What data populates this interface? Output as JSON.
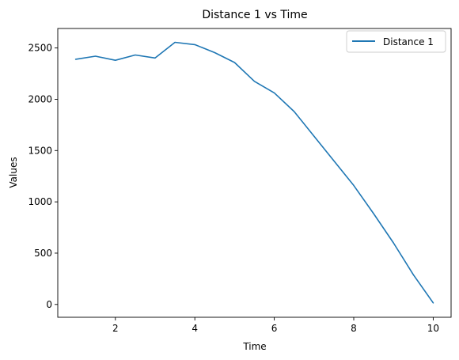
{
  "chart_data": {
    "type": "line",
    "title": "Distance 1 vs Time",
    "xlabel": "Time",
    "ylabel": "Values",
    "xlim": [
      0.55,
      10.45
    ],
    "ylim": [
      -125,
      2690
    ],
    "xticks": [
      2,
      4,
      6,
      8,
      10
    ],
    "yticks": [
      0,
      500,
      1000,
      1500,
      2000,
      2500
    ],
    "grid": false,
    "legend_position": "top-right",
    "series": [
      {
        "name": "Distance 1",
        "color": "#1f77b4",
        "x": [
          1,
          1.5,
          2,
          2.5,
          3,
          3.5,
          4,
          4.5,
          5,
          5.5,
          6,
          6.5,
          7,
          7.5,
          8,
          8.5,
          9,
          9.5,
          10
        ],
        "y": [
          2390,
          2420,
          2380,
          2432,
          2402,
          2555,
          2533,
          2455,
          2358,
          2175,
          2062,
          1880,
          1640,
          1400,
          1160,
          885,
          600,
          290,
          15
        ]
      }
    ]
  }
}
